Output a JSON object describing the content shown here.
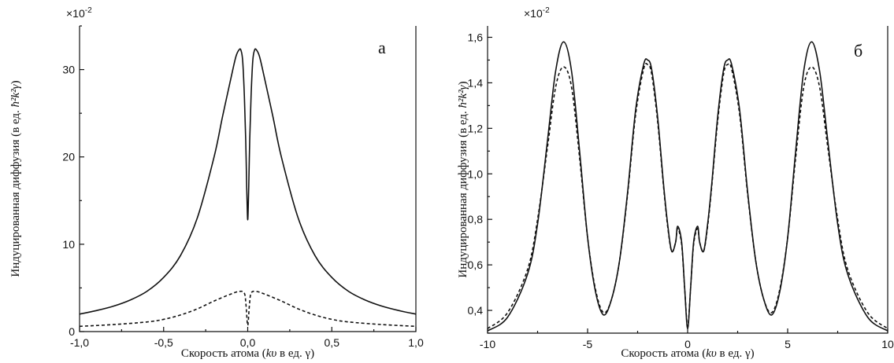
{
  "chart_data": [
    {
      "type": "line",
      "panel_label": "а",
      "scale_label": "×10",
      "scale_exp": "-2",
      "xlabel_pre": "Скорость атома (",
      "xlabel_var": "kυ",
      "xlabel_post": " в ед. γ)",
      "ylabel_pre": "Индуцированная диффузия (в ед. ",
      "ylabel_var": "ħ²k²γ",
      "ylabel_post": ")",
      "xlim": [
        -1.0,
        1.0
      ],
      "ylim": [
        0,
        35
      ],
      "xticks": [
        -1.0,
        -0.5,
        0.0,
        0.5,
        1.0
      ],
      "xtick_labels": [
        "-1,0",
        "-0,5",
        "0,0",
        "0,5",
        "1,0"
      ],
      "yticks": [
        0,
        10,
        20,
        30
      ],
      "ytick_labels": [
        "0",
        "10",
        "20",
        "30"
      ],
      "series": [
        {
          "style": "solid",
          "x": [
            -1.0,
            -0.9,
            -0.8,
            -0.7,
            -0.6,
            -0.5,
            -0.4,
            -0.3,
            -0.2,
            -0.15,
            -0.1,
            -0.07,
            -0.05,
            -0.04,
            -0.03,
            -0.02,
            -0.012,
            -0.006,
            -0.002,
            0.0,
            0.002,
            0.006,
            0.012,
            0.02,
            0.03,
            0.04,
            0.05,
            0.07,
            0.1,
            0.15,
            0.2,
            0.3,
            0.4,
            0.5,
            0.6,
            0.7,
            0.8,
            0.9,
            1.0
          ],
          "y": [
            2.0,
            2.4,
            2.9,
            3.6,
            4.6,
            6.2,
            8.7,
            13.0,
            20.0,
            24.6,
            29.0,
            31.5,
            32.3,
            32.2,
            31.0,
            27.0,
            22.0,
            16.5,
            13.5,
            12.8,
            13.5,
            16.5,
            22.0,
            27.0,
            31.0,
            32.2,
            32.3,
            31.5,
            29.0,
            24.6,
            20.0,
            13.0,
            8.7,
            6.2,
            4.6,
            3.6,
            2.9,
            2.4,
            2.0
          ]
        },
        {
          "style": "dashed",
          "x": [
            -1.0,
            -0.8,
            -0.6,
            -0.5,
            -0.4,
            -0.3,
            -0.2,
            -0.1,
            -0.05,
            -0.02,
            -0.01,
            0.0,
            0.01,
            0.02,
            0.05,
            0.1,
            0.2,
            0.3,
            0.4,
            0.5,
            0.6,
            0.8,
            1.0
          ],
          "y": [
            0.6,
            0.8,
            1.1,
            1.4,
            1.9,
            2.6,
            3.5,
            4.3,
            4.6,
            4.4,
            3.0,
            0.7,
            3.0,
            4.4,
            4.6,
            4.3,
            3.5,
            2.6,
            1.9,
            1.4,
            1.1,
            0.8,
            0.6
          ]
        }
      ]
    },
    {
      "type": "line",
      "panel_label": "б",
      "scale_label": "×10",
      "scale_exp": "-2",
      "xlabel_pre": "Скорость атома (",
      "xlabel_var": "kυ",
      "xlabel_post": " в ед. γ)",
      "ylabel_pre": "Индуцированная диффузия (в ед. ",
      "ylabel_var": "ħ²k²γ",
      "ylabel_post": ")",
      "xlim": [
        -10,
        10
      ],
      "ylim": [
        0.3,
        1.65
      ],
      "xticks": [
        -10,
        -5,
        0,
        5,
        10
      ],
      "xtick_labels": [
        "-10",
        "-5",
        "0",
        "5",
        "10"
      ],
      "yticks": [
        0.4,
        0.6,
        0.8,
        1.0,
        1.2,
        1.4,
        1.6
      ],
      "ytick_labels": [
        "0,4",
        "0,6",
        "0,8",
        "1,0",
        "1,2",
        "1,4",
        "1,6"
      ],
      "series": [
        {
          "style": "solid",
          "x": [
            -10,
            -9,
            -8,
            -7.5,
            -7,
            -6.6,
            -6.2,
            -5.8,
            -5.4,
            -5,
            -4.6,
            -4.2,
            -3.8,
            -3.4,
            -3,
            -2.6,
            -2.2,
            -2.0,
            -1.8,
            -1.5,
            -1.2,
            -1.0,
            -0.8,
            -0.6,
            -0.5,
            -0.3,
            -0.15,
            0,
            0.15,
            0.3,
            0.5,
            0.6,
            0.8,
            1.0,
            1.2,
            1.5,
            1.8,
            2.0,
            2.2,
            2.6,
            3,
            3.4,
            3.8,
            4.2,
            4.6,
            5,
            5.4,
            5.8,
            6.2,
            6.6,
            7,
            7.5,
            8,
            9,
            10
          ],
          "y": [
            0.31,
            0.37,
            0.56,
            0.78,
            1.15,
            1.45,
            1.58,
            1.45,
            1.1,
            0.72,
            0.48,
            0.38,
            0.45,
            0.62,
            0.92,
            1.28,
            1.48,
            1.5,
            1.46,
            1.25,
            0.95,
            0.78,
            0.66,
            0.7,
            0.77,
            0.7,
            0.5,
            0.32,
            0.5,
            0.7,
            0.77,
            0.7,
            0.66,
            0.78,
            0.95,
            1.25,
            1.46,
            1.5,
            1.48,
            1.28,
            0.92,
            0.62,
            0.45,
            0.38,
            0.48,
            0.72,
            1.1,
            1.45,
            1.58,
            1.45,
            1.15,
            0.78,
            0.56,
            0.37,
            0.31
          ]
        },
        {
          "style": "dashed",
          "x": [
            -10,
            -9,
            -8,
            -7.5,
            -7,
            -6.6,
            -6.2,
            -5.8,
            -5.4,
            -5,
            -4.6,
            -4.2,
            -3.8,
            -3.4,
            -3,
            -2.6,
            -2.2,
            -2.0,
            -1.8,
            -1.5,
            -1.2,
            -1.0,
            -0.8,
            -0.6,
            -0.5,
            -0.3,
            -0.15,
            0,
            0.15,
            0.3,
            0.5,
            0.6,
            0.8,
            1.0,
            1.2,
            1.5,
            1.8,
            2.0,
            2.2,
            2.6,
            3,
            3.4,
            3.8,
            4.2,
            4.6,
            5,
            5.4,
            5.8,
            6.2,
            6.6,
            7,
            7.5,
            8,
            9,
            10
          ],
          "y": [
            0.32,
            0.39,
            0.58,
            0.8,
            1.12,
            1.38,
            1.47,
            1.38,
            1.07,
            0.72,
            0.49,
            0.39,
            0.45,
            0.62,
            0.91,
            1.26,
            1.46,
            1.48,
            1.44,
            1.23,
            0.94,
            0.77,
            0.66,
            0.7,
            0.76,
            0.69,
            0.5,
            0.33,
            0.5,
            0.69,
            0.76,
            0.7,
            0.66,
            0.77,
            0.94,
            1.23,
            1.44,
            1.48,
            1.46,
            1.26,
            0.91,
            0.62,
            0.45,
            0.39,
            0.49,
            0.72,
            1.07,
            1.38,
            1.47,
            1.38,
            1.12,
            0.8,
            0.58,
            0.39,
            0.32
          ]
        }
      ]
    }
  ]
}
